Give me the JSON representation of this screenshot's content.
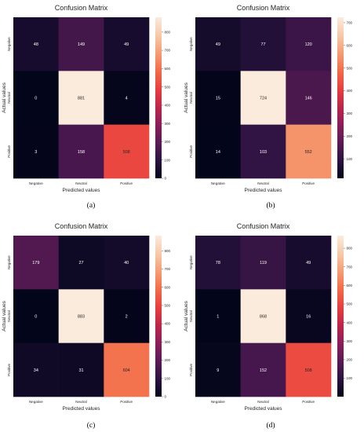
{
  "figure": {
    "panels": [
      "(a)",
      "(b)",
      "(c)",
      "(d)"
    ]
  },
  "colors": {
    "colormap": "rocket",
    "stops": [
      "#03051a",
      "#2b1340",
      "#5a1a55",
      "#8b1e5a",
      "#be2649",
      "#e83f3f",
      "#f26b47",
      "#f69c73",
      "#f7c9a9",
      "#faebdd"
    ]
  },
  "chart_data": [
    {
      "type": "heatmap",
      "panel": "(a)",
      "title": "Confusion Matrix",
      "xlabel": "Predicted values",
      "ylabel": "Actual values",
      "x_categories": [
        "Negative",
        "Neutral",
        "Positive"
      ],
      "y_categories": [
        "Negative",
        "Neutral",
        "Positive"
      ],
      "values": [
        [
          48,
          149,
          49
        ],
        [
          0,
          881,
          4
        ],
        [
          3,
          158,
          508
        ]
      ],
      "colorbar": {
        "vmin": 0,
        "vmax": 881,
        "ticks": [
          0,
          100,
          200,
          300,
          400,
          500,
          600,
          700,
          800
        ]
      }
    },
    {
      "type": "heatmap",
      "panel": "(b)",
      "title": "Confusion Matrix",
      "xlabel": "Predicted values",
      "ylabel": "Actual values",
      "x_categories": [
        "Negative",
        "Neutral",
        "Positive"
      ],
      "y_categories": [
        "Negative",
        "Neutral",
        "Positive"
      ],
      "values": [
        [
          49,
          77,
          120
        ],
        [
          15,
          724,
          146
        ],
        [
          14,
          103,
          552
        ]
      ],
      "colorbar": {
        "vmin": 14,
        "vmax": 724,
        "ticks": [
          100,
          200,
          300,
          400,
          500,
          600,
          700
        ]
      }
    },
    {
      "type": "heatmap",
      "panel": "(c)",
      "title": "Confusion Matrix",
      "xlabel": "Predicted values",
      "ylabel": "Actual values",
      "x_categories": [
        "Negative",
        "Neutral",
        "Positive"
      ],
      "y_categories": [
        "Negative",
        "Neutral",
        "Positive"
      ],
      "values": [
        [
          179,
          27,
          40
        ],
        [
          0,
          883,
          2
        ],
        [
          34,
          31,
          604
        ]
      ],
      "colorbar": {
        "vmin": 0,
        "vmax": 883,
        "ticks": [
          0,
          100,
          200,
          300,
          400,
          500,
          600,
          700,
          800
        ]
      }
    },
    {
      "type": "heatmap",
      "panel": "(d)",
      "title": "Confusion Matrix",
      "xlabel": "Predicted values",
      "ylabel": "Actual values",
      "x_categories": [
        "Negative",
        "Neutral",
        "Positive"
      ],
      "y_categories": [
        "Negative",
        "Neutral",
        "Positive"
      ],
      "values": [
        [
          78,
          119,
          49
        ],
        [
          1,
          868,
          16
        ],
        [
          9,
          152,
          508
        ]
      ],
      "colorbar": {
        "vmin": 1,
        "vmax": 868,
        "ticks": [
          100,
          200,
          300,
          400,
          500,
          600,
          700,
          800
        ]
      }
    }
  ]
}
